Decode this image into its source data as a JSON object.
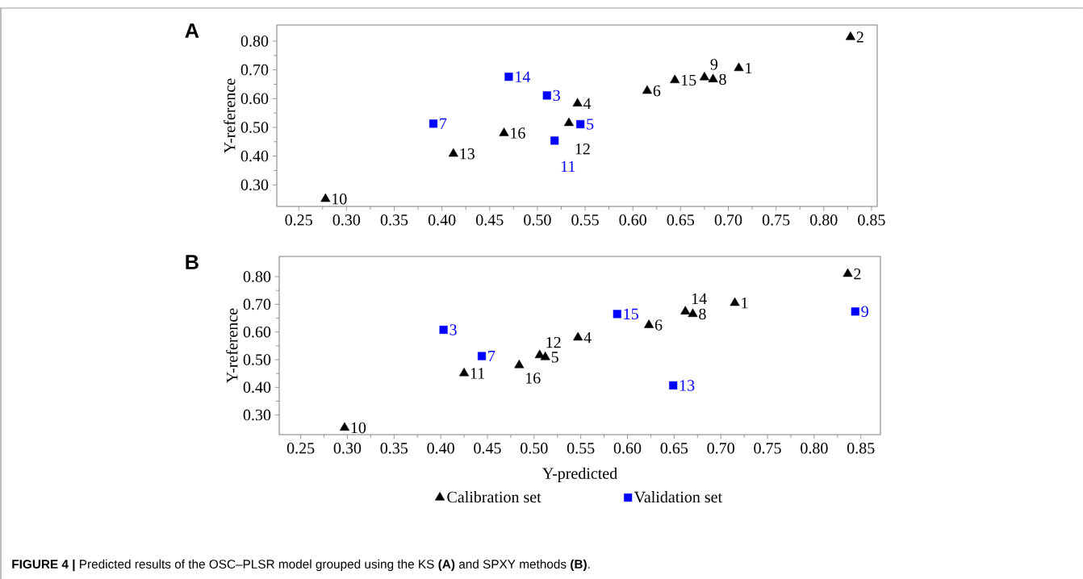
{
  "chart_data": [
    {
      "type": "scatter",
      "title": "A",
      "ylabel": "Y-reference",
      "xlim": [
        0.227,
        0.856
      ],
      "ylim": [
        0.225,
        0.856
      ],
      "xticks": [
        {
          "value": 0.25,
          "label": "0.25"
        },
        {
          "value": 0.3,
          "label": "0.30"
        },
        {
          "value": 0.35,
          "label": "0.35"
        },
        {
          "value": 0.4,
          "label": "0.40"
        },
        {
          "value": 0.45,
          "label": "0.45"
        },
        {
          "value": 0.5,
          "label": "0.50"
        },
        {
          "value": 0.55,
          "label": "0.55"
        },
        {
          "value": 0.6,
          "label": "0.60"
        },
        {
          "value": 0.65,
          "label": "0.65"
        },
        {
          "value": 0.7,
          "label": "0.70"
        },
        {
          "value": 0.75,
          "label": "0.75"
        },
        {
          "value": 0.8,
          "label": "0.80"
        },
        {
          "value": 0.85,
          "label": "0.85"
        }
      ],
      "yticks": [
        {
          "value": 0.3,
          "label": "0.30"
        },
        {
          "value": 0.4,
          "label": "0.40"
        },
        {
          "value": 0.5,
          "label": "0.50"
        },
        {
          "value": 0.6,
          "label": "0.60"
        },
        {
          "value": 0.7,
          "label": "0.70"
        },
        {
          "value": 0.8,
          "label": "0.80"
        }
      ],
      "series": [
        {
          "color": "#000000",
          "marker": "triangle",
          "x": [
            0.278,
            0.412,
            0.465,
            0.542,
            0.533,
            0.615,
            0.644,
            0.675,
            0.684,
            0.711,
            0.828
          ],
          "values": [
            0.251,
            0.408,
            0.48,
            0.583,
            0.515,
            0.627,
            0.664,
            0.674,
            0.667,
            0.706,
            0.814
          ]
        },
        {
          "color": "#0000ff",
          "marker": "square",
          "x": [
            0.391,
            0.47,
            0.51,
            0.545,
            0.518
          ],
          "values": [
            0.513,
            0.676,
            0.611,
            0.511,
            0.454
          ]
        }
      ],
      "annotations": [
        {
          "text": "10",
          "x": 0.278,
          "y": 0.251
        },
        {
          "text": "13",
          "x": 0.412,
          "y": 0.408
        },
        {
          "text": "16",
          "x": 0.465,
          "y": 0.48
        },
        {
          "text": "4",
          "x": 0.542,
          "y": 0.583
        },
        {
          "text": "12",
          "x": 0.533,
          "y": 0.515
        },
        {
          "text": "6",
          "x": 0.615,
          "y": 0.627
        },
        {
          "text": "15",
          "x": 0.644,
          "y": 0.664
        },
        {
          "text": "9",
          "x": 0.675,
          "y": 0.674
        },
        {
          "text": "8",
          "x": 0.684,
          "y": 0.667
        },
        {
          "text": "1",
          "x": 0.711,
          "y": 0.706
        },
        {
          "text": "2",
          "x": 0.828,
          "y": 0.814
        },
        {
          "text": "7",
          "x": 0.391,
          "y": 0.513
        },
        {
          "text": "14",
          "x": 0.47,
          "y": 0.676
        },
        {
          "text": "3",
          "x": 0.51,
          "y": 0.611
        },
        {
          "text": "5",
          "x": 0.545,
          "y": 0.511
        },
        {
          "text": "11",
          "x": 0.518,
          "y": 0.454
        }
      ]
    },
    {
      "type": "scatter",
      "title": "B",
      "xlabel": "Y-predicted",
      "ylabel": "Y-reference",
      "xlim": [
        0.227,
        0.871
      ],
      "ylim": [
        0.229,
        0.873
      ],
      "legend": "bottom",
      "xticks": [
        {
          "value": 0.25,
          "label": "0.25"
        },
        {
          "value": 0.3,
          "label": "0.30"
        },
        {
          "value": 0.35,
          "label": "0.35"
        },
        {
          "value": 0.4,
          "label": "0.40"
        },
        {
          "value": 0.45,
          "label": "0.45"
        },
        {
          "value": 0.5,
          "label": "0.50"
        },
        {
          "value": 0.55,
          "label": "0.55"
        },
        {
          "value": 0.6,
          "label": "0.60"
        },
        {
          "value": 0.65,
          "label": "0.65"
        },
        {
          "value": 0.7,
          "label": "0.70"
        },
        {
          "value": 0.75,
          "label": "0.75"
        },
        {
          "value": 0.8,
          "label": "0.80"
        },
        {
          "value": 0.85,
          "label": "0.85"
        }
      ],
      "yticks": [
        {
          "value": 0.3,
          "label": "0.30"
        },
        {
          "value": 0.4,
          "label": "0.40"
        },
        {
          "value": 0.5,
          "label": "0.50"
        },
        {
          "value": 0.6,
          "label": "0.60"
        },
        {
          "value": 0.7,
          "label": "0.70"
        },
        {
          "value": 0.8,
          "label": "0.80"
        }
      ],
      "series": [
        {
          "name": "Calibration set",
          "color": "#000000",
          "marker": "triangle",
          "x": [
            0.297,
            0.425,
            0.484,
            0.506,
            0.512,
            0.547,
            0.623,
            0.662,
            0.67,
            0.715,
            0.836
          ],
          "values": [
            0.254,
            0.451,
            0.48,
            0.516,
            0.509,
            0.58,
            0.625,
            0.674,
            0.665,
            0.705,
            0.81
          ]
        },
        {
          "name": "Validation set",
          "color": "#0000ff",
          "marker": "square",
          "x": [
            0.403,
            0.444,
            0.589,
            0.649,
            0.844
          ],
          "values": [
            0.608,
            0.513,
            0.665,
            0.407,
            0.674
          ]
        }
      ],
      "annotations": [
        {
          "text": "10",
          "x": 0.297,
          "y": 0.254
        },
        {
          "text": "11",
          "x": 0.425,
          "y": 0.451
        },
        {
          "text": "16",
          "x": 0.484,
          "y": 0.48
        },
        {
          "text": "12",
          "x": 0.506,
          "y": 0.516
        },
        {
          "text": "5",
          "x": 0.512,
          "y": 0.509
        },
        {
          "text": "4",
          "x": 0.547,
          "y": 0.58
        },
        {
          "text": "6",
          "x": 0.623,
          "y": 0.625
        },
        {
          "text": "14",
          "x": 0.662,
          "y": 0.674
        },
        {
          "text": "8",
          "x": 0.67,
          "y": 0.665
        },
        {
          "text": "1",
          "x": 0.715,
          "y": 0.705
        },
        {
          "text": "2",
          "x": 0.836,
          "y": 0.81
        },
        {
          "text": "3",
          "x": 0.403,
          "y": 0.608
        },
        {
          "text": "7",
          "x": 0.444,
          "y": 0.513
        },
        {
          "text": "15",
          "x": 0.589,
          "y": 0.665
        },
        {
          "text": "13",
          "x": 0.649,
          "y": 0.407
        },
        {
          "text": "9",
          "x": 0.844,
          "y": 0.674
        },
        "**FIGURE 4 |** Predicted results of the OSC–PLSR model grouped using the KS **(A)** and SPXY methods **(B)**."
      ]
    }
  ]
}
